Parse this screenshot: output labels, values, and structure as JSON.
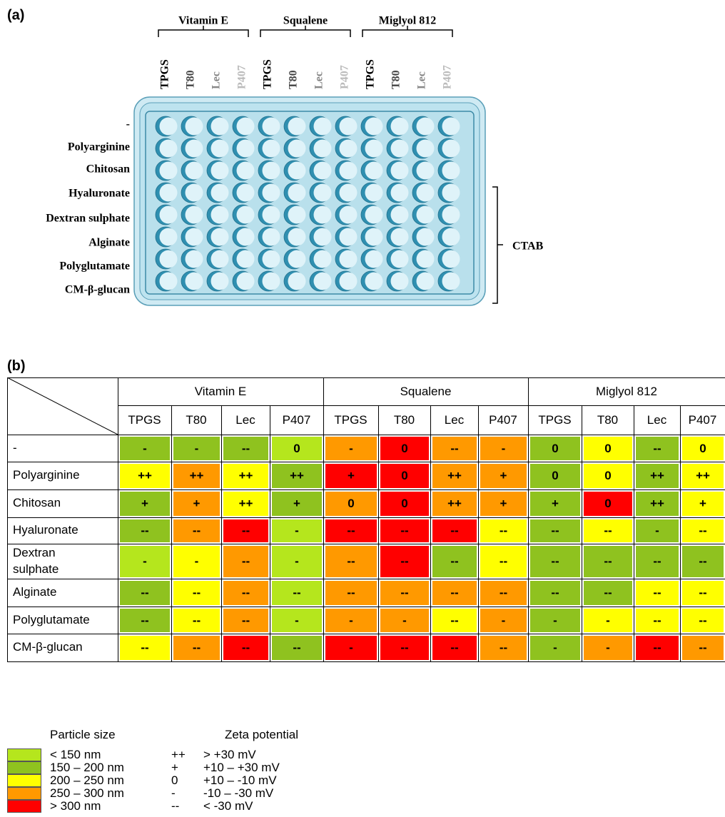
{
  "panel_a": {
    "label": "(a)",
    "groups": [
      {
        "name": "Vitamin E",
        "columns": [
          "TPGS",
          "T80",
          "Lec",
          "P407"
        ]
      },
      {
        "name": "Squalene",
        "columns": [
          "TPGS",
          "T80",
          "Lec",
          "P407"
        ]
      },
      {
        "name": "Miglyol 812",
        "columns": [
          "TPGS",
          "T80",
          "Lec",
          "P407"
        ]
      }
    ],
    "column_colors": [
      "#000000",
      "#444444",
      "#888888",
      "#bbbbbb"
    ],
    "rows": [
      "-",
      "Polyarginine",
      "Chitosan",
      "Hyaluronate",
      "Dextran sulphate",
      "Alginate",
      "Polyglutamate",
      "CM-β-glucan"
    ],
    "bracket_label": "CTAB"
  },
  "panel_b": {
    "label": "(b)",
    "groups": [
      "Vitamin E",
      "Squalene",
      "Miglyol 812"
    ],
    "columns": [
      "TPGS",
      "T80",
      "Lec",
      "P407",
      "TPGS",
      "T80",
      "Lec",
      "P407",
      "TPGS",
      "T80",
      "Lec",
      "P407"
    ],
    "rows": [
      {
        "label": "-",
        "cells": [
          {
            "text": "-",
            "color": "#8fc21f"
          },
          {
            "text": "-",
            "color": "#8fc21f"
          },
          {
            "text": "--",
            "color": "#8fc21f"
          },
          {
            "text": "0",
            "color": "#b5e61d"
          },
          {
            "text": "-",
            "color": "#ff9900"
          },
          {
            "text": "0",
            "color": "#ff0000"
          },
          {
            "text": "--",
            "color": "#ff9900"
          },
          {
            "text": "-",
            "color": "#ff9900"
          },
          {
            "text": "0",
            "color": "#8fc21f"
          },
          {
            "text": "0",
            "color": "#ffff00"
          },
          {
            "text": "--",
            "color": "#8fc21f"
          },
          {
            "text": "0",
            "color": "#ffff00"
          }
        ]
      },
      {
        "label": "Polyarginine",
        "cells": [
          {
            "text": "++",
            "color": "#ffff00"
          },
          {
            "text": "++",
            "color": "#ff9900"
          },
          {
            "text": "++",
            "color": "#ffff00"
          },
          {
            "text": "++",
            "color": "#8fc21f"
          },
          {
            "text": "+",
            "color": "#ff0000"
          },
          {
            "text": "0",
            "color": "#ff0000"
          },
          {
            "text": "++",
            "color": "#ff9900"
          },
          {
            "text": "+",
            "color": "#ff9900"
          },
          {
            "text": "0",
            "color": "#8fc21f"
          },
          {
            "text": "0",
            "color": "#ffff00"
          },
          {
            "text": "++",
            "color": "#8fc21f"
          },
          {
            "text": "++",
            "color": "#ffff00"
          }
        ]
      },
      {
        "label": "Chitosan",
        "cells": [
          {
            "text": "+",
            "color": "#8fc21f"
          },
          {
            "text": "+",
            "color": "#ff9900"
          },
          {
            "text": "++",
            "color": "#ffff00"
          },
          {
            "text": "+",
            "color": "#8fc21f"
          },
          {
            "text": "0",
            "color": "#ff9900"
          },
          {
            "text": "0",
            "color": "#ff0000"
          },
          {
            "text": "++",
            "color": "#ff9900"
          },
          {
            "text": "+",
            "color": "#ff9900"
          },
          {
            "text": "+",
            "color": "#8fc21f"
          },
          {
            "text": "0",
            "color": "#ff0000"
          },
          {
            "text": "++",
            "color": "#8fc21f"
          },
          {
            "text": "+",
            "color": "#ffff00"
          }
        ]
      },
      {
        "label": "Hyaluronate",
        "cells": [
          {
            "text": "--",
            "color": "#8fc21f"
          },
          {
            "text": "--",
            "color": "#ff9900"
          },
          {
            "text": "--",
            "color": "#ff0000"
          },
          {
            "text": "-",
            "color": "#b5e61d"
          },
          {
            "text": "--",
            "color": "#ff0000"
          },
          {
            "text": "--",
            "color": "#ff0000"
          },
          {
            "text": "--",
            "color": "#ff0000"
          },
          {
            "text": "--",
            "color": "#ffff00"
          },
          {
            "text": "--",
            "color": "#8fc21f"
          },
          {
            "text": "--",
            "color": "#ffff00"
          },
          {
            "text": "-",
            "color": "#8fc21f"
          },
          {
            "text": "--",
            "color": "#ffff00"
          }
        ]
      },
      {
        "label": "Dextran sulphate",
        "cells": [
          {
            "text": "-",
            "color": "#b5e61d"
          },
          {
            "text": "-",
            "color": "#ffff00"
          },
          {
            "text": "--",
            "color": "#ff9900"
          },
          {
            "text": "-",
            "color": "#b5e61d"
          },
          {
            "text": "--",
            "color": "#ff9900"
          },
          {
            "text": "--",
            "color": "#ff0000"
          },
          {
            "text": "--",
            "color": "#8fc21f"
          },
          {
            "text": "--",
            "color": "#ffff00"
          },
          {
            "text": "--",
            "color": "#8fc21f"
          },
          {
            "text": "--",
            "color": "#8fc21f"
          },
          {
            "text": "--",
            "color": "#8fc21f"
          },
          {
            "text": "--",
            "color": "#8fc21f"
          }
        ]
      },
      {
        "label": "Alginate",
        "cells": [
          {
            "text": "--",
            "color": "#8fc21f"
          },
          {
            "text": "--",
            "color": "#ffff00"
          },
          {
            "text": "--",
            "color": "#ff9900"
          },
          {
            "text": "--",
            "color": "#b5e61d"
          },
          {
            "text": "--",
            "color": "#ff9900"
          },
          {
            "text": "--",
            "color": "#ff9900"
          },
          {
            "text": "--",
            "color": "#ff9900"
          },
          {
            "text": "--",
            "color": "#ff9900"
          },
          {
            "text": "--",
            "color": "#8fc21f"
          },
          {
            "text": "--",
            "color": "#8fc21f"
          },
          {
            "text": "--",
            "color": "#ffff00"
          },
          {
            "text": "--",
            "color": "#ffff00"
          }
        ]
      },
      {
        "label": "Polyglutamate",
        "cells": [
          {
            "text": "--",
            "color": "#8fc21f"
          },
          {
            "text": "--",
            "color": "#ffff00"
          },
          {
            "text": "--",
            "color": "#ff9900"
          },
          {
            "text": "-",
            "color": "#b5e61d"
          },
          {
            "text": "-",
            "color": "#ff9900"
          },
          {
            "text": "-",
            "color": "#ff9900"
          },
          {
            "text": "--",
            "color": "#ffff00"
          },
          {
            "text": "-",
            "color": "#ff9900"
          },
          {
            "text": "-",
            "color": "#8fc21f"
          },
          {
            "text": "-",
            "color": "#ffff00"
          },
          {
            "text": "--",
            "color": "#ffff00"
          },
          {
            "text": "--",
            "color": "#ffff00"
          }
        ]
      },
      {
        "label": "CM-β-glucan",
        "cells": [
          {
            "text": "--",
            "color": "#ffff00"
          },
          {
            "text": "--",
            "color": "#ff9900"
          },
          {
            "text": "--",
            "color": "#ff0000"
          },
          {
            "text": "--",
            "color": "#8fc21f"
          },
          {
            "text": "-",
            "color": "#ff0000"
          },
          {
            "text": "--",
            "color": "#ff0000"
          },
          {
            "text": "--",
            "color": "#ff0000"
          },
          {
            "text": "--",
            "color": "#ff9900"
          },
          {
            "text": "-",
            "color": "#8fc21f"
          },
          {
            "text": "-",
            "color": "#ff9900"
          },
          {
            "text": "--",
            "color": "#ff0000"
          },
          {
            "text": "--",
            "color": "#ff9900"
          }
        ]
      }
    ]
  },
  "legend": {
    "size_title": "Particle size",
    "zeta_title": "Zeta potential",
    "size": [
      {
        "label": "< 150 nm",
        "color": "#b5e61d"
      },
      {
        "label": "150 – 200 nm",
        "color": "#8fc21f"
      },
      {
        "label": "200 – 250 nm",
        "color": "#ffff00"
      },
      {
        "label": "250 – 300 nm",
        "color": "#ff9900"
      },
      {
        "label": "> 300 nm",
        "color": "#ff0000"
      }
    ],
    "zeta": [
      {
        "symbol": "++",
        "label": "> +30 mV"
      },
      {
        "symbol": "+",
        "label": "+10 – +30 mV"
      },
      {
        "symbol": "0",
        "label": "+10 – -10 mV"
      },
      {
        "symbol": "-",
        "label": "-10 – -30 mV"
      },
      {
        "symbol": "--",
        "label": "< -30 mV"
      }
    ]
  }
}
